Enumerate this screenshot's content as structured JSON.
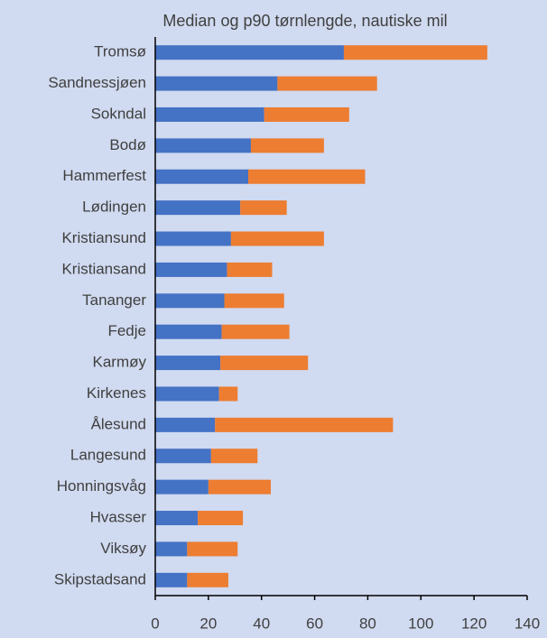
{
  "chart_data": {
    "type": "bar",
    "orientation": "horizontal",
    "stacked": true,
    "title": "Median og p90 tørnlengde, nautiske mil",
    "categories": [
      "Tromsø",
      "Sandnessjøen",
      "Sokndal",
      "Bodø",
      "Hammerfest",
      "Lødingen",
      "Kristiansund",
      "Kristiansand",
      "Tananger",
      "Fedje",
      "Karmøy",
      "Kirkenes",
      "Ålesund",
      "Langesund",
      "Honningsvåg",
      "Hvasser",
      "Viksøy",
      "Skipstadsand"
    ],
    "series": [
      {
        "color": "#4472c4",
        "values": [
          71,
          46,
          41,
          36,
          35,
          32,
          28.5,
          27,
          26,
          25,
          24.5,
          24,
          22.5,
          21,
          20,
          16,
          12,
          12
        ]
      },
      {
        "color": "#ed7d31",
        "values": [
          54,
          37.5,
          32,
          27.5,
          44,
          17.5,
          35,
          17,
          22.5,
          25.5,
          33,
          7,
          67,
          17.5,
          23.5,
          17,
          19,
          15.5
        ]
      }
    ],
    "xlim": [
      0,
      140
    ],
    "xticks": [
      0,
      20,
      40,
      60,
      80,
      100,
      120,
      140
    ],
    "grid": false
  }
}
